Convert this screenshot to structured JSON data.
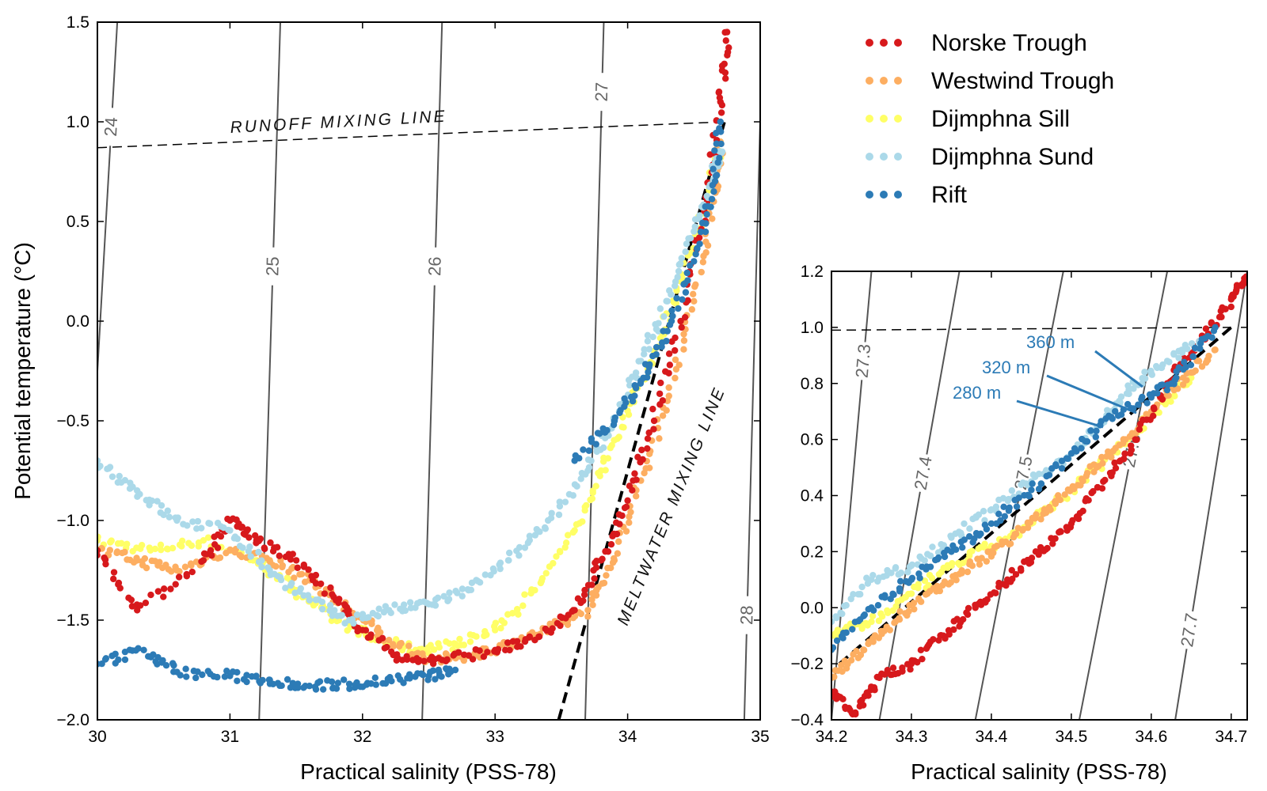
{
  "colors": {
    "norske": "#d7191c",
    "westwind": "#fdae61",
    "sill": "#ffff66",
    "sund": "#abd9e9",
    "rift": "#2c7bb6"
  },
  "legend": {
    "items": [
      {
        "label": "Norske Trough",
        "color": "#d7191c"
      },
      {
        "label": "Westwind Trough",
        "color": "#fdae61"
      },
      {
        "label": "Dijmphna Sill",
        "color": "#ffff66"
      },
      {
        "label": "Dijmphna Sund",
        "color": "#abd9e9"
      },
      {
        "label": "Rift",
        "color": "#2c7bb6"
      }
    ]
  },
  "chart_data": [
    {
      "type": "scatter",
      "xlabel": "Practical salinity (PSS-78)",
      "ylabel": "Potential temperature (°C)",
      "xlim": [
        30,
        35
      ],
      "ylim": [
        -2.0,
        1.5
      ],
      "xticks": [
        "30",
        "31",
        "32",
        "33",
        "34",
        "35"
      ],
      "yticks": [
        "−2.0",
        "−1.5",
        "−1.0",
        "−0.5",
        "0.0",
        "0.5",
        "1.0",
        "1.5"
      ],
      "isopycnals": [
        {
          "label": "24",
          "x_bottom": 29.85,
          "x_top": 30.15
        },
        {
          "label": "25",
          "x_bottom": 31.22,
          "x_top": 31.38
        },
        {
          "label": "26",
          "x_bottom": 32.45,
          "x_top": 32.6
        },
        {
          "label": "27",
          "x_bottom": 33.68,
          "x_top": 33.82
        },
        {
          "label": "28",
          "x_bottom": 34.88,
          "x_top": 35.02
        }
      ],
      "annotations": [
        "RUNOFF MIXING LINE",
        "MELTWATER MIXING LINE"
      ],
      "runoff_line": {
        "x": [
          30.0,
          34.73
        ],
        "y": [
          0.87,
          1.0
        ]
      },
      "meltwater_line": {
        "x": [
          33.48,
          34.73
        ],
        "y": [
          -2.0,
          1.0
        ]
      },
      "series": [
        {
          "name": "Norske Trough",
          "x": [
            30.0,
            30.3,
            30.8,
            31.0,
            31.2,
            31.5,
            31.8,
            32.0,
            32.3,
            32.6,
            33.0,
            33.3,
            33.6,
            33.8,
            34.0,
            34.2,
            34.4,
            34.6,
            34.7,
            34.75
          ],
          "y": [
            -1.15,
            -1.45,
            -1.2,
            -1.0,
            -1.1,
            -1.2,
            -1.4,
            -1.55,
            -1.7,
            -1.7,
            -1.65,
            -1.6,
            -1.45,
            -1.2,
            -0.9,
            -0.5,
            0.0,
            0.6,
            1.1,
            1.45
          ]
        },
        {
          "name": "Westwind Trough",
          "x": [
            30.0,
            30.3,
            30.6,
            31.0,
            31.3,
            31.6,
            31.9,
            32.2,
            32.5,
            32.8,
            33.1,
            33.4,
            33.7,
            33.9,
            34.1,
            34.3,
            34.5,
            34.65,
            34.7
          ],
          "y": [
            -1.15,
            -1.2,
            -1.25,
            -1.15,
            -1.2,
            -1.3,
            -1.45,
            -1.6,
            -1.7,
            -1.68,
            -1.62,
            -1.55,
            -1.45,
            -1.2,
            -0.8,
            -0.4,
            0.1,
            0.6,
            0.9
          ]
        },
        {
          "name": "Dijmphna Sill",
          "x": [
            30.0,
            30.4,
            30.8,
            31.2,
            31.5,
            31.8,
            32.1,
            32.4,
            32.7,
            33.0,
            33.3,
            33.6,
            33.8,
            34.0,
            34.2,
            34.4,
            34.6,
            34.7
          ],
          "y": [
            -1.1,
            -1.15,
            -1.1,
            -1.2,
            -1.35,
            -1.5,
            -1.6,
            -1.65,
            -1.62,
            -1.55,
            -1.35,
            -1.05,
            -0.75,
            -0.45,
            -0.15,
            0.2,
            0.6,
            0.9
          ]
        },
        {
          "name": "Dijmphna Sund",
          "x": [
            30.0,
            30.3,
            30.6,
            31.0,
            31.3,
            31.6,
            31.9,
            32.2,
            32.5,
            32.8,
            33.1,
            33.4,
            33.7,
            33.9,
            34.1,
            34.3,
            34.5,
            34.65,
            34.7
          ],
          "y": [
            -0.7,
            -0.85,
            -1.0,
            -1.05,
            -1.25,
            -1.4,
            -1.5,
            -1.45,
            -1.42,
            -1.35,
            -1.2,
            -1.0,
            -0.75,
            -0.5,
            -0.2,
            0.1,
            0.45,
            0.75,
            0.85
          ]
        },
        {
          "name": "Rift",
          "x": [
            30.0,
            30.35,
            30.6,
            31.0,
            31.3,
            31.6,
            31.9,
            32.2,
            32.5,
            32.7,
            33.6,
            33.9,
            34.1,
            34.3,
            34.5,
            34.65,
            34.7
          ],
          "y": [
            -1.72,
            -1.65,
            -1.76,
            -1.78,
            -1.8,
            -1.83,
            -1.82,
            -1.8,
            -1.78,
            -1.75,
            -0.7,
            -0.5,
            -0.3,
            -0.05,
            0.3,
            0.65,
            1.0
          ]
        }
      ]
    },
    {
      "type": "scatter",
      "xlabel": "Practical salinity (PSS-78)",
      "xlim": [
        34.2,
        34.72
      ],
      "ylim": [
        -0.4,
        1.2
      ],
      "xticks": [
        "34.2",
        "34.3",
        "34.4",
        "34.5",
        "34.6",
        "34.7"
      ],
      "yticks": [
        "−0.4",
        "−0.2",
        "0.0",
        "0.2",
        "0.4",
        "0.6",
        "0.8",
        "1.0",
        "1.2"
      ],
      "isopycnals": [
        {
          "label": "27.3",
          "x_bottom": 34.2,
          "x_top": 34.25
        },
        {
          "label": "27.4",
          "x_bottom": 34.26,
          "x_top": 34.36
        },
        {
          "label": "27.5",
          "x_bottom": 34.38,
          "x_top": 34.49
        },
        {
          "label": "27.6",
          "x_bottom": 34.51,
          "x_top": 34.62
        },
        {
          "label": "27.7",
          "x_bottom": 34.63,
          "x_top": 34.72
        }
      ],
      "annotations": [
        "360 m",
        "320 m",
        "280 m"
      ],
      "runoff_line": {
        "x": [
          34.2,
          34.7
        ],
        "y": [
          0.99,
          1.0
        ]
      },
      "meltwater_line": {
        "x": [
          34.21,
          34.7
        ],
        "y": [
          -0.2,
          1.0
        ]
      },
      "series": [
        {
          "name": "Norske Trough",
          "x": [
            34.2,
            34.23,
            34.26,
            34.3,
            34.34,
            34.38,
            34.42,
            34.46,
            34.5,
            34.54,
            34.58,
            34.62,
            34.66,
            34.7,
            34.72
          ],
          "y": [
            -0.3,
            -0.38,
            -0.25,
            -0.2,
            -0.1,
            0.0,
            0.1,
            0.2,
            0.3,
            0.45,
            0.6,
            0.8,
            0.95,
            1.1,
            1.18
          ]
        },
        {
          "name": "Westwind Trough",
          "x": [
            34.2,
            34.24,
            34.28,
            34.32,
            34.36,
            34.4,
            34.44,
            34.48,
            34.52,
            34.56,
            34.6,
            34.64,
            34.68
          ],
          "y": [
            -0.25,
            -0.15,
            -0.05,
            0.05,
            0.12,
            0.2,
            0.28,
            0.38,
            0.48,
            0.58,
            0.7,
            0.82,
            0.92
          ]
        },
        {
          "name": "Dijmphna Sill",
          "x": [
            34.2,
            34.25,
            34.3,
            34.35,
            34.4,
            34.45,
            34.5,
            34.55,
            34.6,
            34.65
          ],
          "y": [
            -0.1,
            -0.05,
            0.05,
            0.15,
            0.22,
            0.3,
            0.42,
            0.55,
            0.68,
            0.82
          ]
        },
        {
          "name": "Dijmphna Sund",
          "x": [
            34.2,
            34.25,
            34.3,
            34.35,
            34.4,
            34.45,
            34.5,
            34.55,
            34.58,
            34.62,
            34.66
          ],
          "y": [
            -0.05,
            0.1,
            0.15,
            0.25,
            0.35,
            0.45,
            0.55,
            0.7,
            0.8,
            0.88,
            0.95
          ]
        },
        {
          "name": "Rift",
          "x": [
            34.2,
            34.25,
            34.3,
            34.35,
            34.4,
            34.45,
            34.5,
            34.55,
            34.6,
            34.64,
            34.68
          ],
          "y": [
            -0.15,
            0.0,
            0.1,
            0.2,
            0.3,
            0.42,
            0.55,
            0.68,
            0.75,
            0.85,
            1.0
          ]
        }
      ]
    }
  ]
}
